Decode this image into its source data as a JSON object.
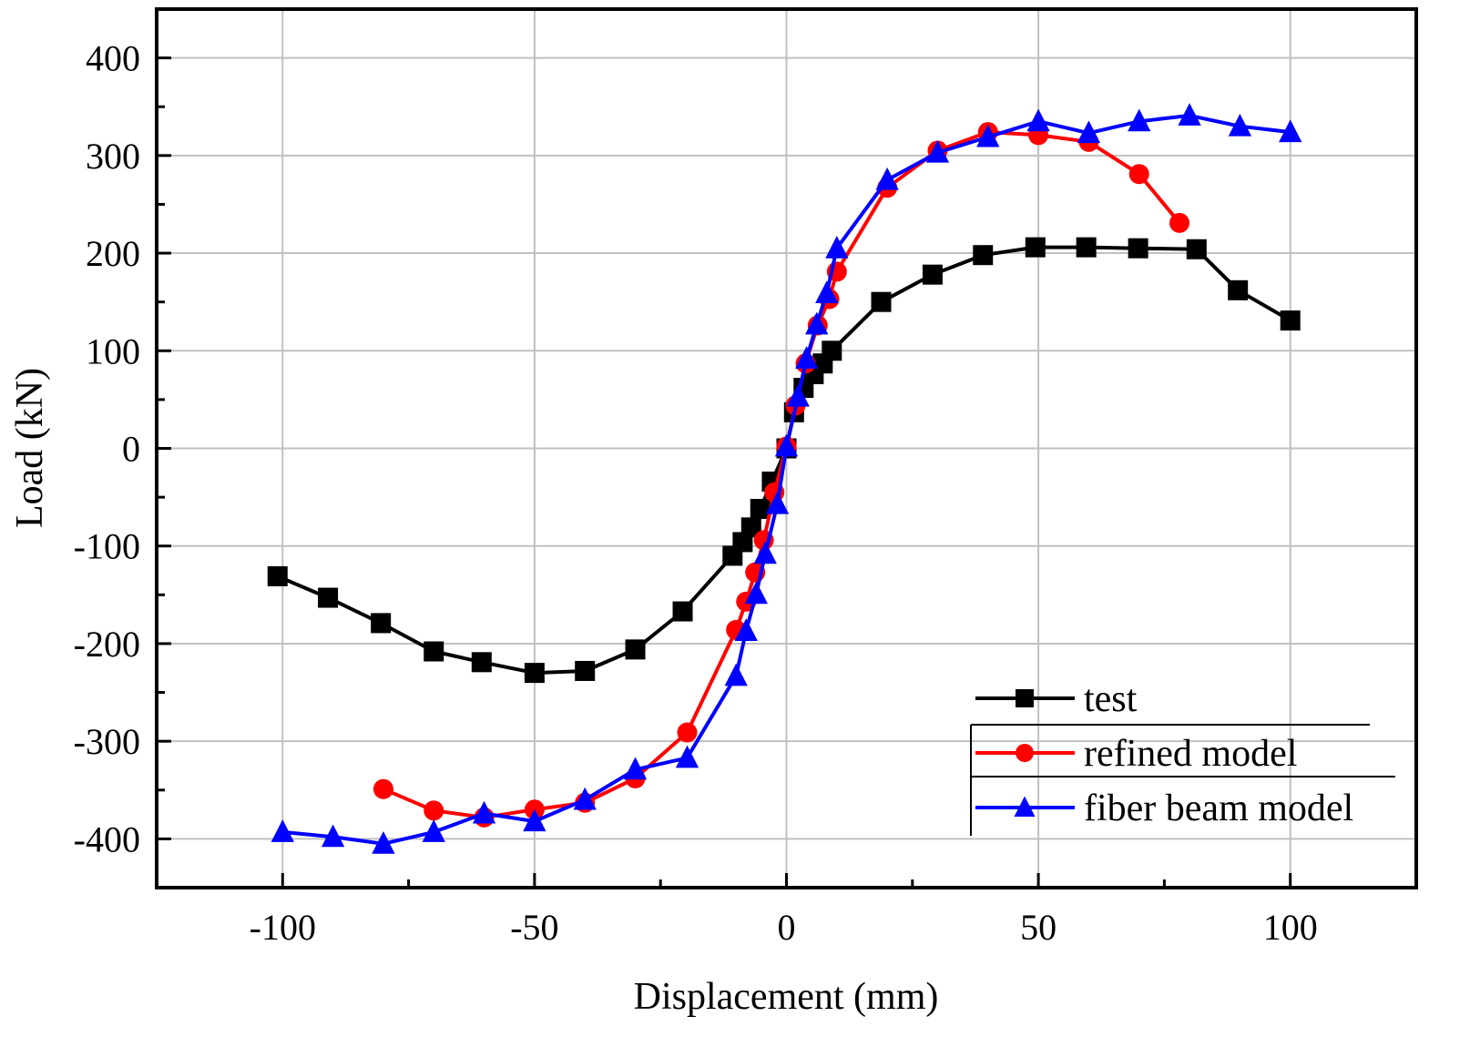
{
  "chart_data": {
    "type": "line",
    "title": "",
    "xlabel": "Displacement (mm)",
    "ylabel": "Load (kN)",
    "xlim": [
      -125,
      125
    ],
    "ylim": [
      -450,
      450
    ],
    "x_ticks": [
      -100,
      -50,
      0,
      50,
      100
    ],
    "x_tick_labels": [
      "-100",
      "-50",
      "0",
      "50",
      "100"
    ],
    "x_minor_ticks": [
      -75,
      -25,
      25,
      75
    ],
    "y_ticks": [
      -400,
      -300,
      -200,
      -100,
      0,
      100,
      200,
      300,
      400
    ],
    "y_tick_labels": [
      "-400",
      "-300",
      "-200",
      "-100",
      "0",
      "100",
      "200",
      "300",
      "400"
    ],
    "y_minor_ticks": [
      -350,
      -250,
      -150,
      -50,
      50,
      150,
      250,
      350
    ],
    "grid": true,
    "legend_position": "bottom-right",
    "series": [
      {
        "name": "test",
        "color": "#000000",
        "marker": "square",
        "x": [
          -101,
          -91,
          -80.5,
          -70,
          -60.5,
          -50,
          -40,
          -30,
          -20.6,
          -10.7,
          -8.7,
          -7,
          -5.2,
          -2.9,
          0,
          1.5,
          3.4,
          5.4,
          7.2,
          9,
          18.8,
          29,
          39,
          49.4,
          59.5,
          69.8,
          81.4,
          89.6,
          100
        ],
        "y": [
          -131,
          -153,
          -179,
          -208,
          -219,
          -230,
          -228,
          -206,
          -167,
          -110,
          -96,
          -81,
          -62,
          -34,
          0,
          37,
          62,
          76,
          87,
          100,
          150,
          178,
          198,
          206,
          206,
          205,
          204,
          162,
          131
        ]
      },
      {
        "name": "refined model",
        "color": "#ff0000",
        "marker": "circle",
        "x": [
          -80,
          -70,
          -60,
          -50,
          -40,
          -30,
          -19.7,
          -10,
          -8,
          -6.2,
          -4.5,
          -2.4,
          0,
          1.8,
          3.8,
          6.2,
          8.5,
          10,
          20,
          30,
          40,
          50,
          60,
          70,
          78
        ],
        "y": [
          -349,
          -371,
          -378,
          -370,
          -363,
          -338,
          -291,
          -186,
          -157,
          -127,
          -94,
          -45,
          2,
          44,
          87,
          126,
          153,
          181,
          267,
          305,
          324,
          321,
          314,
          281,
          231
        ]
      },
      {
        "name": "fiber beam model",
        "color": "#0000ff",
        "marker": "triangle",
        "x": [
          -100,
          -90,
          -80,
          -70,
          -60,
          -50,
          -40,
          -30,
          -19.7,
          -10,
          -8,
          -6,
          -4.2,
          -1.8,
          0,
          2.3,
          4,
          6,
          8,
          10,
          20,
          30,
          40,
          50,
          60,
          70,
          80,
          90,
          100
        ],
        "y": [
          -393,
          -398,
          -405,
          -393,
          -374,
          -382,
          -360,
          -329,
          -317,
          -233,
          -187,
          -149,
          -108,
          -57,
          2,
          53,
          92,
          127,
          159,
          205,
          275,
          303,
          319,
          335,
          323,
          335,
          341,
          330,
          324
        ]
      }
    ]
  }
}
